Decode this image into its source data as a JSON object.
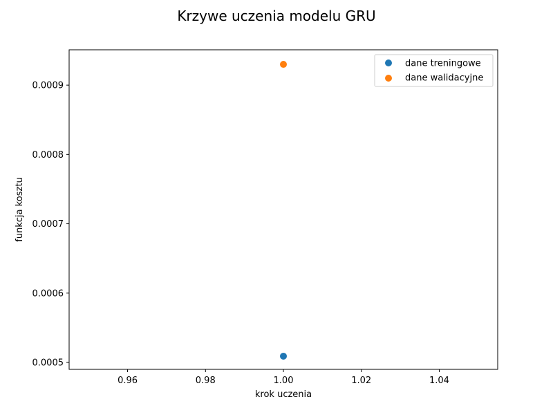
{
  "chart_data": {
    "type": "scatter",
    "title": "Krzywe uczenia modelu GRU",
    "xlabel": "krok uczenia",
    "ylabel": "funkcja kosztu",
    "xlim": [
      0.945,
      1.055
    ],
    "ylim": [
      0.00049,
      0.000951
    ],
    "x_ticks": [
      0.96,
      0.98,
      1.0,
      1.02,
      1.04
    ],
    "x_tick_labels": [
      "0.96",
      "0.98",
      "1.00",
      "1.02",
      "1.04"
    ],
    "y_ticks": [
      0.0005,
      0.0006,
      0.0007,
      0.0008,
      0.0009
    ],
    "y_tick_labels": [
      "0.0005",
      "0.0006",
      "0.0007",
      "0.0008",
      "0.0009"
    ],
    "grid": false,
    "legend_position": "top-right",
    "series": [
      {
        "name": "dane treningowe",
        "color": "#1f77b4",
        "points": [
          {
            "x": 1.0,
            "y": 0.000509
          }
        ]
      },
      {
        "name": "dane walidacyjne",
        "color": "#ff7f0e",
        "points": [
          {
            "x": 1.0,
            "y": 0.00093
          }
        ]
      }
    ]
  }
}
